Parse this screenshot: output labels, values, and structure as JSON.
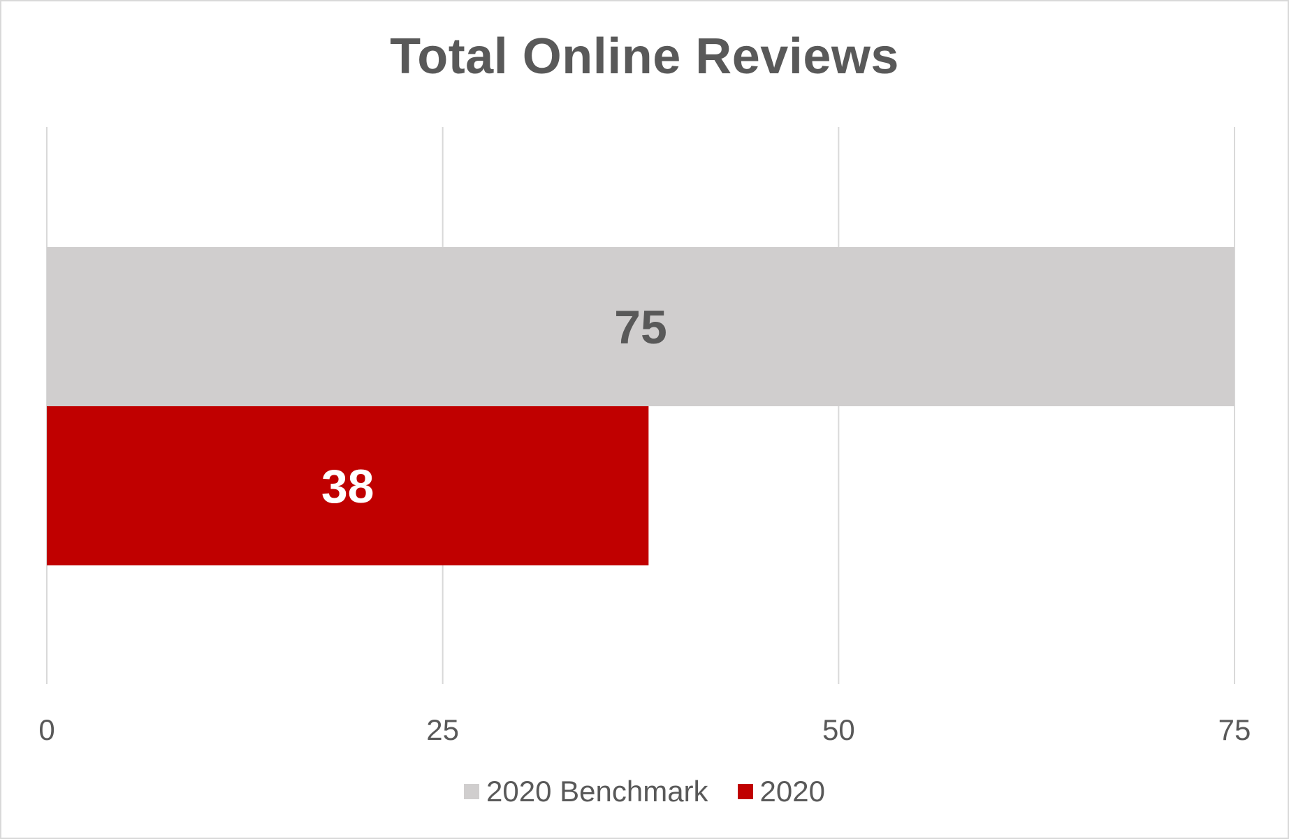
{
  "chart_data": {
    "type": "bar",
    "orientation": "horizontal",
    "title": "Total Online Reviews",
    "xlabel": "",
    "ylabel": "",
    "xlim": [
      0,
      75
    ],
    "xticks": [
      0,
      25,
      50,
      75
    ],
    "grid": true,
    "legend_position": "bottom",
    "series": [
      {
        "name": "2020 Benchmark",
        "value": 75,
        "color": "#d0cece",
        "label_color": "#595959"
      },
      {
        "name": "2020",
        "value": 38,
        "color": "#c00000",
        "label_color": "#ffffff"
      }
    ]
  }
}
